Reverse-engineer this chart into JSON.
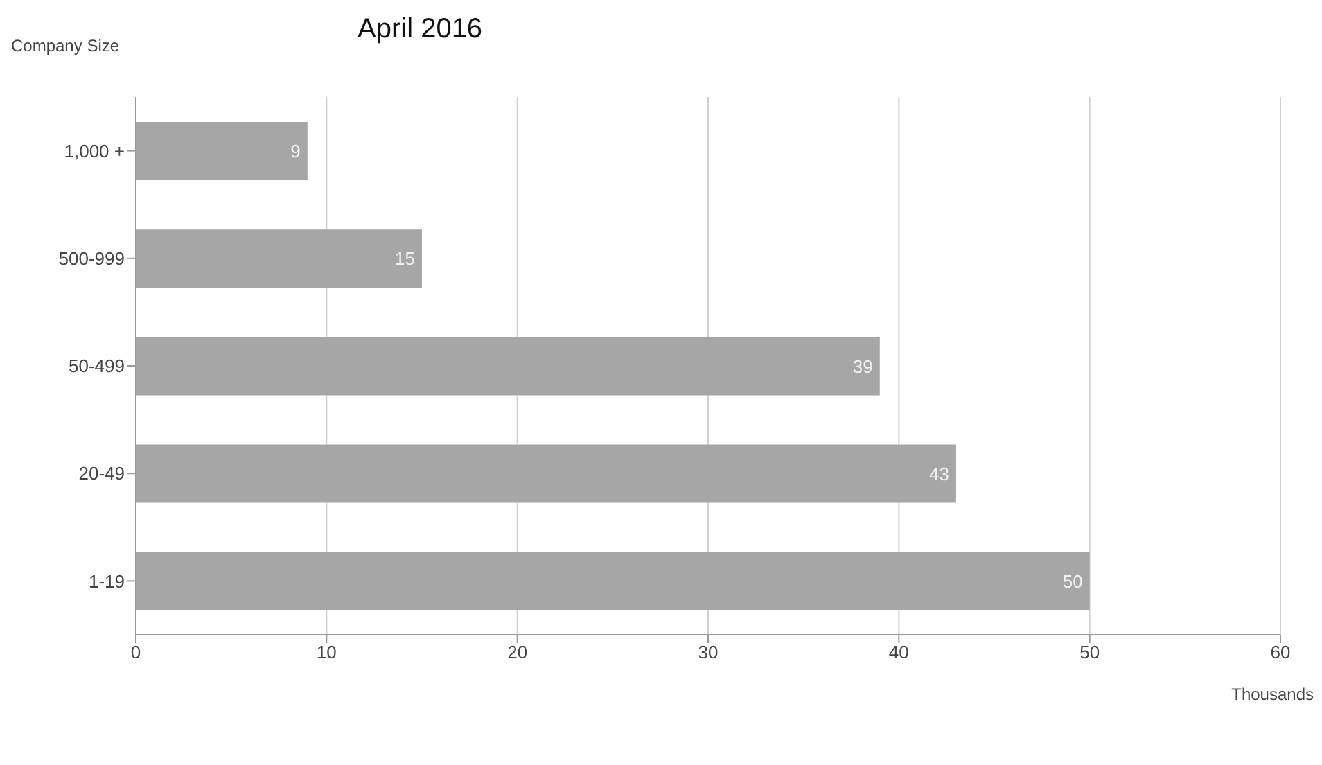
{
  "chart_data": {
    "type": "bar",
    "orientation": "horizontal",
    "title": "April 2016",
    "ylabel": "Company Size",
    "xlabel": "Thousands",
    "categories": [
      "1,000 +",
      "500-999",
      "50-499",
      "20-49",
      "1-19"
    ],
    "values": [
      9,
      15,
      39,
      43,
      50
    ],
    "color": "#a6a6a6",
    "data_labels": true,
    "xlim": [
      0,
      60
    ],
    "xticks": [
      0,
      10,
      20,
      30,
      40,
      50,
      60
    ],
    "grid": "x"
  }
}
